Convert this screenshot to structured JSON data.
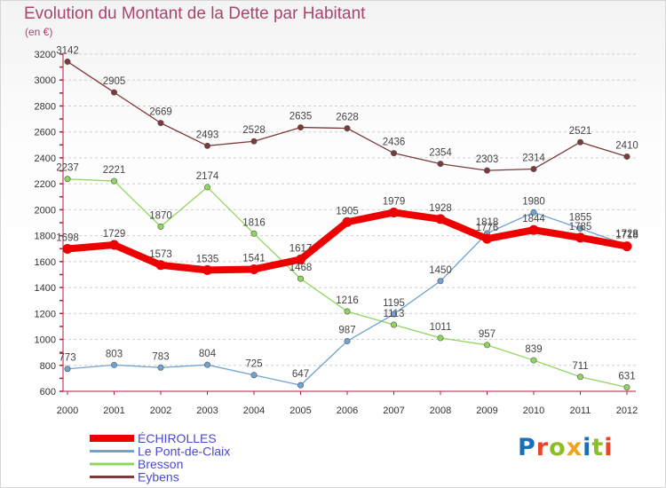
{
  "header": {
    "title": "Evolution du Montant de la Dette par Habitant",
    "unit": "(en €)"
  },
  "logo": {
    "text": "Proxiti",
    "letter_colors": [
      "#1a6fb8",
      "#e8462c",
      "#8cbf26",
      "#f2a31c",
      "#1a6fb8",
      "#8cbf26",
      "#e8462c"
    ]
  },
  "chart_data": {
    "type": "line",
    "title": "Evolution du Montant de la Dette par Habitant",
    "ylabel": "(en €)",
    "xlabel": "",
    "x": [
      "2000",
      "2001",
      "2002",
      "2003",
      "2004",
      "2005",
      "2006",
      "2007",
      "2008",
      "2009",
      "2010",
      "2011",
      "2012"
    ],
    "ylim": [
      600,
      3200
    ],
    "yticks": [
      600,
      800,
      1000,
      1200,
      1400,
      1600,
      1800,
      2000,
      2200,
      2400,
      2600,
      2800,
      3000,
      3200
    ],
    "grid": "horizontal dashed",
    "legend_position": "bottom-left",
    "series": [
      {
        "name": "Eybens",
        "color": "#7d3a3a",
        "values": [
          3142,
          2905,
          2669,
          2493,
          2528,
          2635,
          2628,
          2436,
          2354,
          2303,
          2314,
          2521,
          2410
        ]
      },
      {
        "name": "Bresson",
        "color": "#90d65e",
        "values": [
          2237,
          2221,
          1870,
          2174,
          1816,
          1468,
          1216,
          1113,
          1011,
          957,
          839,
          711,
          631
        ]
      },
      {
        "name": "Le Pont-de-Claix",
        "color": "#6fa3d1",
        "values": [
          773,
          803,
          783,
          804,
          725,
          647,
          987,
          1195,
          1450,
          1818,
          1980,
          1855,
          1728
        ]
      },
      {
        "name": "ÉCHIROLLES",
        "color": "#ee0000",
        "values": [
          1698,
          1729,
          1573,
          1535,
          1541,
          1617,
          1905,
          1979,
          1928,
          1776,
          1844,
          1785,
          1718
        ]
      }
    ]
  }
}
